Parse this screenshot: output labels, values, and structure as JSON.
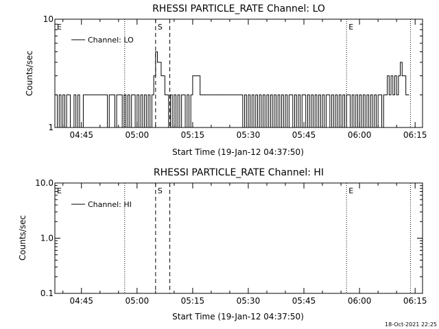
{
  "chart_data": [
    {
      "type": "line",
      "title": "RHESSI PARTICLE_RATE Channel: LO",
      "xlabel": "Start Time (19-Jan-12 04:37:50)",
      "ylabel": "Counts/sec",
      "yscale": "log",
      "xlim": [
        "04:37:50",
        "06:17:00"
      ],
      "ylim": [
        1,
        10
      ],
      "x_ticks": [
        "04:45",
        "05:00",
        "05:15",
        "05:30",
        "05:45",
        "06:00",
        "06:15"
      ],
      "y_ticks": [
        "1",
        "10"
      ],
      "legend": {
        "position": "top-left",
        "entries": [
          "Channel: LO"
        ]
      },
      "series": [
        {
          "name": "Channel: LO",
          "x": [
            "04:38:00",
            "04:38:30",
            "04:39:00",
            "04:39:30",
            "04:40:00",
            "04:40:30",
            "04:41:00",
            "04:41:30",
            "04:42:00",
            "04:42:30",
            "04:43:00",
            "04:43:30",
            "04:44:00",
            "04:44:30",
            "04:45:00",
            "04:45:30",
            "04:52:00",
            "04:52:30",
            "04:54:00",
            "04:54:30",
            "04:56:00",
            "04:56:30",
            "04:57:00",
            "04:57:30",
            "04:58:00",
            "04:58:30",
            "04:59:00",
            "04:59:30",
            "05:00:00",
            "05:00:30",
            "05:01:00",
            "05:01:30",
            "05:02:00",
            "05:02:30",
            "05:03:00",
            "05:03:30",
            "05:04:00",
            "05:04:30",
            "05:05:00",
            "05:05:30",
            "05:06:00",
            "05:06:30",
            "05:07:00",
            "05:07:30",
            "05:08:00",
            "05:08:30",
            "05:09:00",
            "05:09:30",
            "05:10:00",
            "05:10:30",
            "05:11:00",
            "05:11:30",
            "05:12:00",
            "05:12:30",
            "05:13:00",
            "05:13:30",
            "05:14:00",
            "05:14:30",
            "05:15:00",
            "05:17:00",
            "05:17:30",
            "05:18:00",
            "05:18:30",
            "05:22:00",
            "05:28:00",
            "05:28:30",
            "05:29:00",
            "05:29:30",
            "05:30:00",
            "05:30:30",
            "05:31:00",
            "05:31:30",
            "05:32:00",
            "05:32:30",
            "05:33:00",
            "05:33:30",
            "05:34:00",
            "05:34:30",
            "05:35:00",
            "05:35:30",
            "05:36:00",
            "05:36:30",
            "05:37:00",
            "05:37:30",
            "05:38:00",
            "05:38:30",
            "05:39:00",
            "05:39:30",
            "05:40:00",
            "05:40:30",
            "05:41:00",
            "05:41:30",
            "05:42:00",
            "05:42:30",
            "05:43:00",
            "05:43:30",
            "05:44:00",
            "05:44:30",
            "05:45:00",
            "05:45:30",
            "05:46:00",
            "05:46:30",
            "05:47:00",
            "05:47:30",
            "05:48:00",
            "05:48:30",
            "05:49:00",
            "05:49:30",
            "05:50:00",
            "05:50:30",
            "05:51:00",
            "05:51:30",
            "05:52:00",
            "05:52:30",
            "05:53:00",
            "05:53:30",
            "05:54:00",
            "05:54:30",
            "05:55:00",
            "05:55:30",
            "05:56:00",
            "05:56:30",
            "05:57:00",
            "05:57:30",
            "05:58:00",
            "05:58:30",
            "05:59:00",
            "05:59:30",
            "06:00:00",
            "06:00:30",
            "06:01:00",
            "06:01:30",
            "06:02:00",
            "06:02:30",
            "06:03:00",
            "06:03:30",
            "06:04:00",
            "06:04:30",
            "06:05:00",
            "06:05:30",
            "06:06:00",
            "06:06:30",
            "06:07:00",
            "06:07:30",
            "06:08:00",
            "06:08:30",
            "06:09:00",
            "06:09:30",
            "06:10:00",
            "06:10:30",
            "06:11:00",
            "06:11:30",
            "06:12:00",
            "06:12:30",
            "06:13:00"
          ],
          "values": [
            2,
            1,
            2,
            1,
            2,
            1,
            2,
            2,
            1,
            1,
            2,
            1,
            2,
            1,
            1,
            2,
            1,
            2,
            1,
            2,
            1,
            2,
            1,
            2,
            1,
            2,
            2,
            1,
            2,
            1,
            2,
            1,
            2,
            1,
            2,
            1,
            2,
            3,
            5,
            4,
            4,
            3,
            3,
            2,
            2,
            1,
            2,
            1,
            2,
            1,
            2,
            1,
            2,
            2,
            1,
            2,
            1,
            2,
            3,
            2,
            2,
            2,
            2,
            2,
            2,
            1,
            2,
            1,
            2,
            1,
            2,
            1,
            2,
            1,
            2,
            1,
            2,
            1,
            2,
            1,
            2,
            1,
            2,
            1,
            2,
            1,
            2,
            1,
            2,
            1,
            2,
            2,
            1,
            2,
            1,
            2,
            1,
            2,
            2,
            1,
            2,
            1,
            2,
            1,
            2,
            1,
            2,
            1,
            2,
            1,
            2,
            2,
            1,
            2,
            1,
            2,
            1,
            2,
            1,
            2,
            1,
            2,
            2,
            1,
            2,
            1,
            2,
            1,
            2,
            1,
            2,
            1,
            2,
            1,
            2,
            1,
            2,
            1,
            2,
            2,
            1,
            2,
            2,
            3,
            2,
            3,
            2,
            3,
            2,
            3,
            4,
            3,
            3,
            2,
            2
          ]
        }
      ],
      "markers": [
        {
          "time": "04:37:50",
          "label": "E",
          "style": "dotted"
        },
        {
          "time": "04:56:40",
          "label": "",
          "style": "dotted"
        },
        {
          "time": "05:05:00",
          "label": "S",
          "style": "dashed"
        },
        {
          "time": "05:08:50",
          "label": "",
          "style": "dashed"
        },
        {
          "time": "05:56:30",
          "label": "E",
          "style": "dotted"
        },
        {
          "time": "06:13:45",
          "label": "",
          "style": "dotted"
        }
      ]
    },
    {
      "type": "line",
      "title": "RHESSI PARTICLE_RATE Channel: HI",
      "xlabel": "Start Time (19-Jan-12 04:37:50)",
      "ylabel": "Counts/sec",
      "yscale": "log",
      "xlim": [
        "04:37:50",
        "06:17:00"
      ],
      "ylim": [
        0.1,
        10
      ],
      "x_ticks": [
        "04:45",
        "05:00",
        "05:15",
        "05:30",
        "05:45",
        "06:00",
        "06:15"
      ],
      "y_ticks": [
        "0.1",
        "1.0",
        "10.0"
      ],
      "legend": {
        "position": "top-left",
        "entries": [
          "Channel: HI"
        ]
      },
      "series": [
        {
          "name": "Channel: HI",
          "x": [],
          "values": []
        }
      ],
      "markers": [
        {
          "time": "04:37:50",
          "label": "E",
          "style": "dotted"
        },
        {
          "time": "04:56:40",
          "label": "",
          "style": "dotted"
        },
        {
          "time": "05:05:00",
          "label": "S",
          "style": "dashed"
        },
        {
          "time": "05:08:50",
          "label": "",
          "style": "dashed"
        },
        {
          "time": "05:56:30",
          "label": "E",
          "style": "dotted"
        },
        {
          "time": "06:13:45",
          "label": "",
          "style": "dotted"
        }
      ]
    }
  ],
  "footer": {
    "timestamp": "18-Oct-2021 22:25"
  },
  "colors": {
    "background": "#ffffff",
    "foreground": "#000000"
  }
}
